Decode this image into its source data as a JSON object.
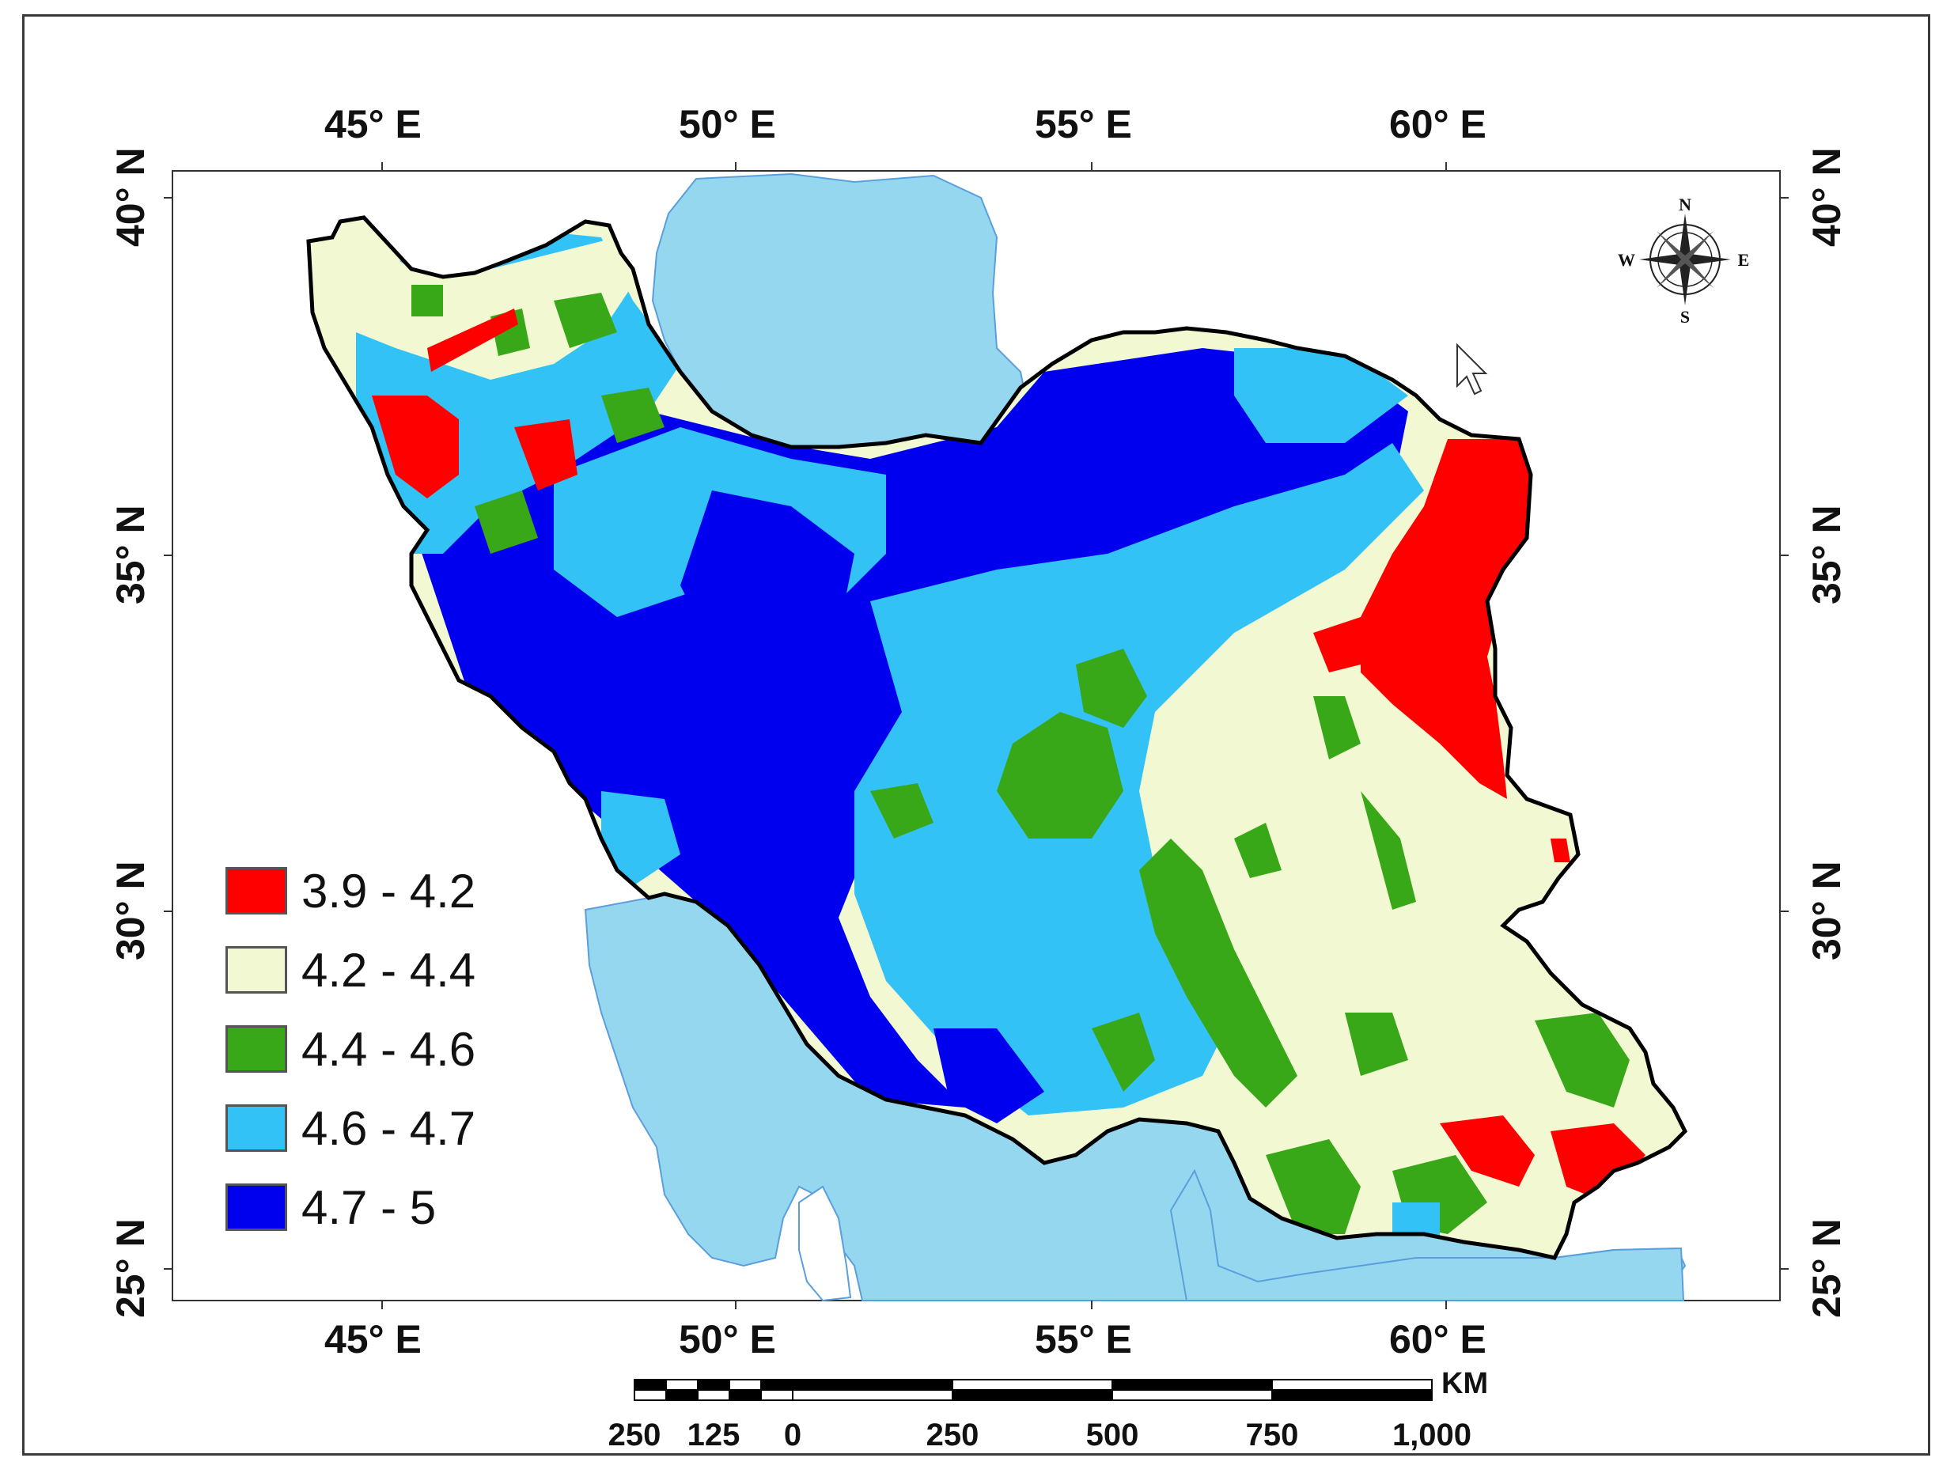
{
  "map": {
    "top_lon_labels": [
      "45° E",
      "50° E",
      "55° E",
      "60° E"
    ],
    "bottom_lon_labels": [
      "45° E",
      "50° E",
      "55° E",
      "60° E"
    ],
    "left_lat_labels": [
      "40° N",
      "35° N",
      "30° N",
      "25° N"
    ],
    "right_lat_labels": [
      "40° N",
      "35° N",
      "30° N",
      "25° N"
    ],
    "background_water_color": "#96d7f0",
    "land_color": "#ffffff"
  },
  "legend": {
    "items": [
      {
        "label": "3.9 - 4.2",
        "color": "#ff0000"
      },
      {
        "label": "4.2 - 4.4",
        "color": "#f2f8d2"
      },
      {
        "label": "4.4 - 4.6",
        "color": "#38a818"
      },
      {
        "label": "4.6 - 4.7",
        "color": "#33c2f5"
      },
      {
        "label": "4.7 - 5",
        "color": "#0000ee"
      }
    ]
  },
  "compass": {
    "north": "N",
    "south": "S",
    "east": "E",
    "west": "W"
  },
  "scale_bar": {
    "unit": "KM",
    "labels": [
      "250",
      "125",
      "0",
      "250",
      "500",
      "750",
      "1,000"
    ]
  }
}
